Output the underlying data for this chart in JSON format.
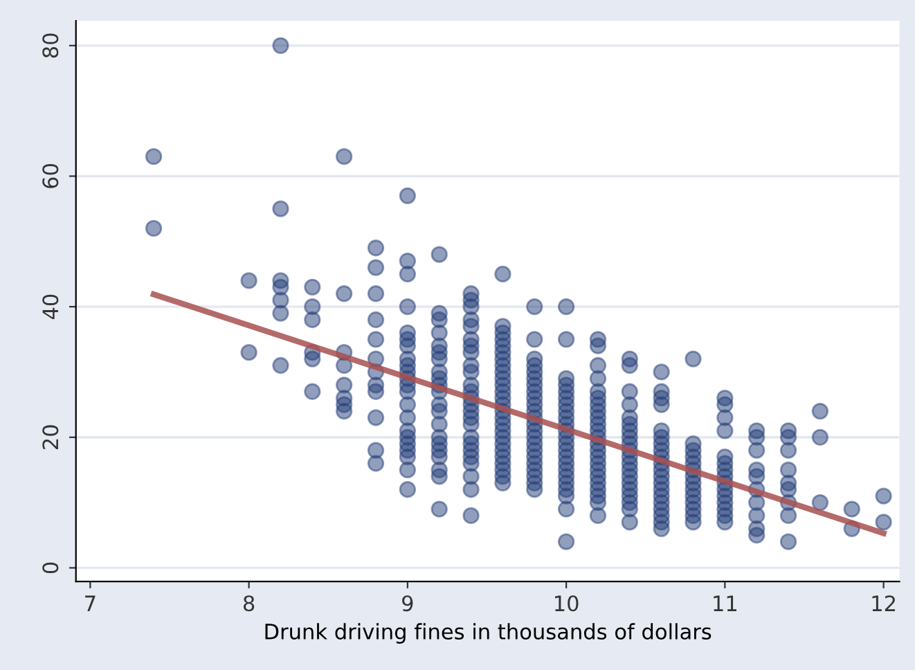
{
  "chart_data": {
    "type": "scatter",
    "xlabel": "Drunk driving fines in thousands of dollars",
    "xlim": [
      6.91,
      12.1
    ],
    "ylim": [
      -2.1,
      83.8
    ],
    "xticks": [
      7,
      8,
      9,
      10,
      11,
      12
    ],
    "yticks": [
      0,
      20,
      40,
      60,
      80
    ],
    "grid": "y",
    "series": [
      {
        "marker": "circle",
        "color": "#26407a",
        "x": [
          7.4,
          7.4,
          8.0,
          8.0,
          8.2,
          8.2,
          8.2,
          8.2,
          8.2,
          8.2,
          8.2,
          8.4,
          8.4,
          8.4,
          8.4,
          8.4,
          8.4,
          8.6,
          8.6,
          8.6,
          8.6,
          8.6,
          8.6,
          8.6,
          8.6,
          8.8,
          8.8,
          8.8,
          8.8,
          8.8,
          8.8,
          8.8,
          8.8,
          8.8,
          8.8,
          8.8,
          8.8,
          9.0,
          9.0,
          9.0,
          9.0,
          9.0,
          9.0,
          9.0,
          9.0,
          9.0,
          9.0,
          9.0,
          9.0,
          9.0,
          9.0,
          9.0,
          9.0,
          9.0,
          9.0,
          9.0,
          9.0,
          9.0,
          9.0,
          9.2,
          9.2,
          9.2,
          9.2,
          9.2,
          9.2,
          9.2,
          9.2,
          9.2,
          9.2,
          9.2,
          9.2,
          9.2,
          9.2,
          9.2,
          9.2,
          9.2,
          9.2,
          9.2,
          9.2,
          9.2,
          9.4,
          9.4,
          9.4,
          9.4,
          9.4,
          9.4,
          9.4,
          9.4,
          9.4,
          9.4,
          9.4,
          9.4,
          9.4,
          9.4,
          9.4,
          9.4,
          9.4,
          9.4,
          9.4,
          9.4,
          9.4,
          9.4,
          9.4,
          9.4,
          9.4,
          9.6,
          9.6,
          9.6,
          9.6,
          9.6,
          9.6,
          9.6,
          9.6,
          9.6,
          9.6,
          9.6,
          9.6,
          9.6,
          9.6,
          9.6,
          9.6,
          9.6,
          9.6,
          9.6,
          9.6,
          9.6,
          9.6,
          9.6,
          9.6,
          9.6,
          9.6,
          9.8,
          9.8,
          9.8,
          9.8,
          9.8,
          9.8,
          9.8,
          9.8,
          9.8,
          9.8,
          9.8,
          9.8,
          9.8,
          9.8,
          9.8,
          9.8,
          9.8,
          9.8,
          9.8,
          9.8,
          9.8,
          9.8,
          9.8,
          10.0,
          10.0,
          10.0,
          10.0,
          10.0,
          10.0,
          10.0,
          10.0,
          10.0,
          10.0,
          10.0,
          10.0,
          10.0,
          10.0,
          10.0,
          10.0,
          10.0,
          10.0,
          10.0,
          10.0,
          10.0,
          10.0,
          10.0,
          10.2,
          10.2,
          10.2,
          10.2,
          10.2,
          10.2,
          10.2,
          10.2,
          10.2,
          10.2,
          10.2,
          10.2,
          10.2,
          10.2,
          10.2,
          10.2,
          10.2,
          10.2,
          10.2,
          10.2,
          10.2,
          10.2,
          10.2,
          10.4,
          10.4,
          10.4,
          10.4,
          10.4,
          10.4,
          10.4,
          10.4,
          10.4,
          10.4,
          10.4,
          10.4,
          10.4,
          10.4,
          10.4,
          10.4,
          10.4,
          10.4,
          10.4,
          10.4,
          10.6,
          10.6,
          10.6,
          10.6,
          10.6,
          10.6,
          10.6,
          10.6,
          10.6,
          10.6,
          10.6,
          10.6,
          10.6,
          10.6,
          10.6,
          10.6,
          10.6,
          10.6,
          10.6,
          10.6,
          10.8,
          10.8,
          10.8,
          10.8,
          10.8,
          10.8,
          10.8,
          10.8,
          10.8,
          10.8,
          10.8,
          10.8,
          10.8,
          10.8,
          11.0,
          11.0,
          11.0,
          11.0,
          11.0,
          11.0,
          11.0,
          11.0,
          11.0,
          11.0,
          11.0,
          11.0,
          11.0,
          11.0,
          11.0,
          11.2,
          11.2,
          11.2,
          11.2,
          11.2,
          11.2,
          11.2,
          11.2,
          11.2,
          11.2,
          11.4,
          11.4,
          11.4,
          11.4,
          11.4,
          11.4,
          11.4,
          11.4,
          11.4,
          11.6,
          11.6,
          11.6,
          11.8,
          11.8,
          12.0,
          12.0
        ],
        "values": [
          63,
          52,
          44,
          33,
          80,
          55,
          44,
          43,
          41,
          39,
          31,
          43,
          40,
          38,
          33,
          32,
          27,
          63,
          42,
          33,
          31,
          28,
          26,
          25,
          24,
          49,
          46,
          42,
          38,
          35,
          32,
          30,
          28,
          27,
          23,
          18,
          16,
          57,
          47,
          45,
          40,
          36,
          35,
          34,
          32,
          31,
          30,
          29,
          28,
          27,
          25,
          23,
          21,
          20,
          19,
          18,
          17,
          15,
          12,
          48,
          39,
          38,
          36,
          34,
          33,
          32,
          30,
          29,
          28,
          27,
          25,
          24,
          22,
          20,
          19,
          18,
          17,
          15,
          14,
          9,
          42,
          41,
          40,
          38,
          37,
          35,
          34,
          33,
          31,
          30,
          28,
          27,
          26,
          25,
          24,
          23,
          22,
          20,
          19,
          18,
          17,
          16,
          14,
          12,
          8,
          45,
          37,
          36,
          35,
          34,
          33,
          32,
          31,
          30,
          29,
          28,
          27,
          26,
          25,
          24,
          23,
          22,
          21,
          20,
          19,
          18,
          17,
          16,
          15,
          14,
          13,
          40,
          35,
          32,
          31,
          30,
          29,
          28,
          27,
          26,
          25,
          24,
          23,
          22,
          21,
          20,
          19,
          18,
          17,
          16,
          15,
          14,
          13,
          12,
          40,
          35,
          29,
          28,
          27,
          26,
          25,
          24,
          23,
          22,
          21,
          20,
          19,
          18,
          17,
          16,
          15,
          14,
          13,
          12,
          11,
          9,
          4,
          35,
          34,
          31,
          29,
          27,
          26,
          25,
          24,
          23,
          22,
          21,
          20,
          19,
          18,
          17,
          16,
          15,
          14,
          13,
          12,
          11,
          10,
          8,
          32,
          31,
          27,
          25,
          23,
          22,
          21,
          20,
          19,
          18,
          17,
          16,
          15,
          14,
          13,
          12,
          11,
          10,
          9,
          7,
          30,
          27,
          26,
          25,
          21,
          20,
          19,
          18,
          17,
          16,
          15,
          14,
          13,
          12,
          11,
          10,
          9,
          8,
          7,
          6,
          32,
          19,
          18,
          17,
          16,
          15,
          14,
          13,
          12,
          11,
          10,
          9,
          8,
          7,
          26,
          25,
          23,
          21,
          17,
          16,
          15,
          14,
          13,
          12,
          11,
          10,
          9,
          8,
          7,
          21,
          20,
          18,
          15,
          14,
          12,
          10,
          8,
          6,
          5,
          21,
          20,
          18,
          15,
          13,
          12,
          10,
          8,
          4,
          24,
          20,
          10,
          9,
          6,
          11,
          7
        ]
      },
      {
        "type": "line",
        "color": "#a85050",
        "x": [
          7.4,
          12.0
        ],
        "values": [
          41.9,
          5.3
        ]
      }
    ]
  }
}
